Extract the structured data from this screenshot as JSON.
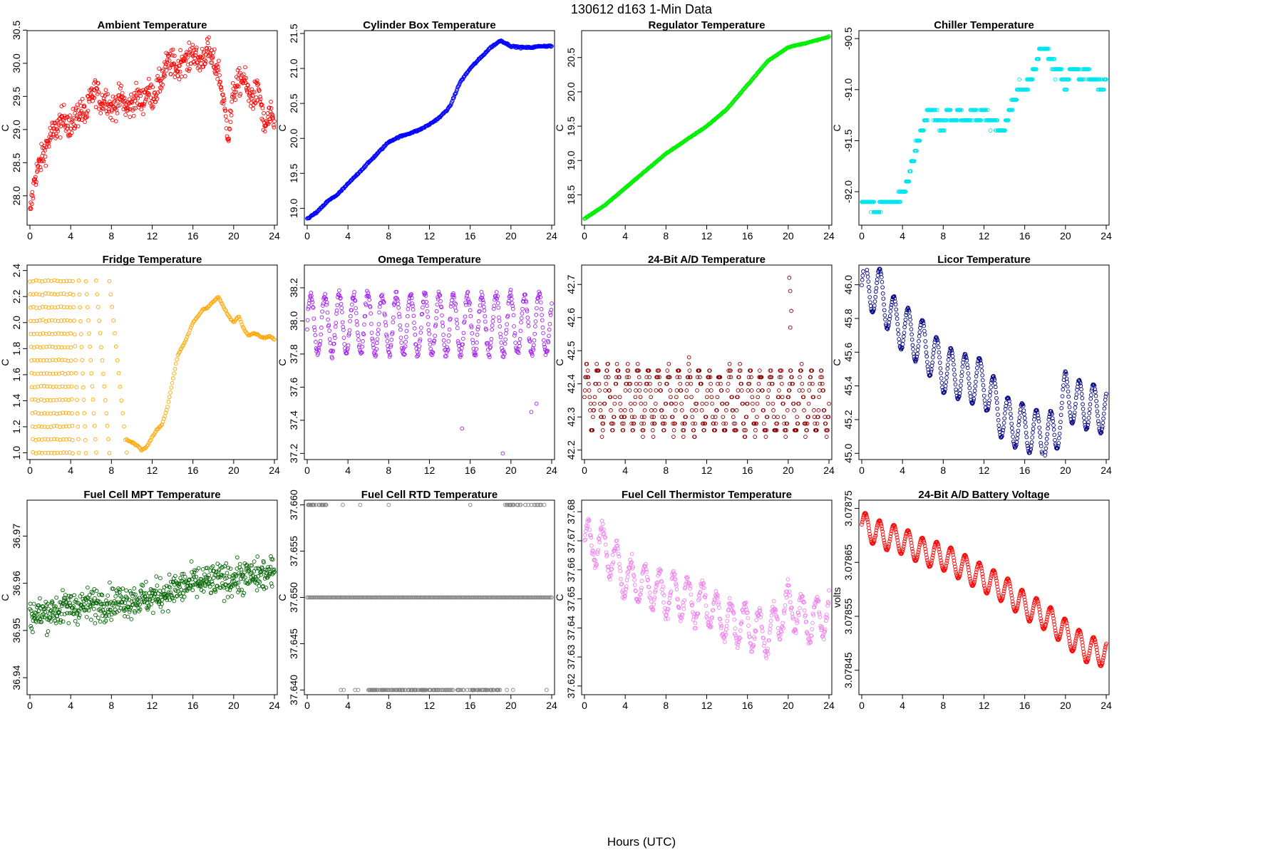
{
  "figure": {
    "title": "130612   d163   1-Min Data",
    "xlabel": "Hours (UTC)"
  },
  "chart_data": [
    {
      "title": "Ambient Temperature",
      "type": "scatter",
      "color": "#ff0000",
      "ylabel": "C",
      "xlim": [
        0,
        24
      ],
      "ylim": [
        27.6,
        30.45
      ],
      "yticks": [
        "28.0",
        "28.5",
        "29.0",
        "29.5",
        "30.0",
        "30.5"
      ],
      "xticks": [
        "0",
        "4",
        "8",
        "12",
        "16",
        "20",
        "24"
      ],
      "x": [
        0,
        0.5,
        1,
        1.5,
        2,
        2.5,
        3,
        3.5,
        4,
        4.5,
        5,
        5.5,
        6,
        6.5,
        7,
        7.5,
        8,
        8.5,
        9,
        9.5,
        10,
        10.5,
        11,
        11.5,
        12,
        12.5,
        13,
        13.5,
        14,
        14.5,
        15,
        15.5,
        16,
        16.5,
        17,
        17.5,
        18,
        18.5,
        19,
        19.5,
        20,
        20.5,
        21,
        21.5,
        22,
        22.5,
        23,
        23.5,
        24
      ],
      "y": [
        27.7,
        28.3,
        28.5,
        28.7,
        28.9,
        29.0,
        29.1,
        29.2,
        29.0,
        29.2,
        29.3,
        29.2,
        29.5,
        29.6,
        29.4,
        29.5,
        29.3,
        29.4,
        29.5,
        29.3,
        29.4,
        29.5,
        29.4,
        29.6,
        29.5,
        29.6,
        29.8,
        30.0,
        30.0,
        29.9,
        30.1,
        30.0,
        30.2,
        30.0,
        30.1,
        30.2,
        30.0,
        29.9,
        29.4,
        28.9,
        29.6,
        29.7,
        29.8,
        29.5,
        29.5,
        29.6,
        29.0,
        29.2,
        29.1
      ],
      "spread": 0.35,
      "density": 28
    },
    {
      "title": "Cylinder Box Temperature",
      "type": "line",
      "color": "#0000ff",
      "ylabel": "C",
      "xlim": [
        0,
        24
      ],
      "ylim": [
        18.8,
        21.5
      ],
      "yticks": [
        "19.0",
        "19.5",
        "20.0",
        "20.5",
        "21.0",
        "21.5"
      ],
      "xticks": [
        "0",
        "4",
        "8",
        "12",
        "16",
        "20",
        "24"
      ],
      "x": [
        0,
        1,
        2,
        3,
        4,
        5,
        6,
        7,
        8,
        9,
        10,
        11,
        12,
        13,
        14,
        15,
        16,
        17,
        18,
        19,
        20,
        21,
        22,
        23,
        24
      ],
      "y": [
        18.85,
        18.95,
        19.1,
        19.2,
        19.35,
        19.5,
        19.65,
        19.8,
        19.95,
        20.02,
        20.07,
        20.12,
        20.2,
        20.3,
        20.45,
        20.8,
        21.0,
        21.15,
        21.3,
        21.4,
        21.32,
        21.3,
        21.3,
        21.32,
        21.32
      ],
      "spread": 0.02,
      "density": 10
    },
    {
      "title": "Regulator Temperature",
      "type": "line",
      "color": "#00ee00",
      "ylabel": "C",
      "xlim": [
        0,
        24
      ],
      "ylim": [
        18.1,
        20.85
      ],
      "yticks": [
        "18.5",
        "19.0",
        "19.5",
        "20.0",
        "20.5"
      ],
      "xticks": [
        "0",
        "4",
        "8",
        "12",
        "16",
        "20",
        "24"
      ],
      "x": [
        0,
        2,
        4,
        6,
        8,
        10,
        12,
        14,
        16,
        18,
        20,
        22,
        24
      ],
      "y": [
        18.15,
        18.35,
        18.6,
        18.85,
        19.1,
        19.3,
        19.5,
        19.75,
        20.1,
        20.45,
        20.65,
        20.72,
        20.8
      ],
      "spread": 0.01,
      "density": 12
    },
    {
      "title": "Chiller Temperature",
      "type": "scatter",
      "color": "#00e5ee",
      "ylabel": "C",
      "xlim": [
        0,
        24
      ],
      "ylim": [
        -92.3,
        -90.45
      ],
      "yticks": [
        "-92.0",
        "-91.5",
        "-91.0",
        "-90.5"
      ],
      "xticks": [
        "0",
        "4",
        "8",
        "12",
        "16",
        "20",
        "24"
      ],
      "x": [
        0,
        0.5,
        1,
        1.5,
        2,
        2.5,
        3,
        3.5,
        4,
        4.5,
        5,
        5.5,
        6,
        6.5,
        7,
        7.5,
        8,
        8.5,
        9,
        9.5,
        10,
        10.5,
        11,
        11.5,
        12,
        12.5,
        13,
        13.5,
        14,
        14.5,
        15,
        15.5,
        16,
        16.5,
        17,
        17.5,
        18,
        18.5,
        19,
        19.5,
        20,
        20.5,
        21,
        21.5,
        22,
        22.5,
        23,
        23.5,
        24
      ],
      "y": [
        -92.1,
        -92.1,
        -92.1,
        -92.2,
        -92.1,
        -92.1,
        -92.1,
        -92.1,
        -92.0,
        -91.9,
        -91.7,
        -91.5,
        -91.4,
        -91.2,
        -91.2,
        -91.3,
        -91.4,
        -91.2,
        -91.3,
        -91.2,
        -91.3,
        -91.3,
        -91.2,
        -91.3,
        -91.2,
        -91.3,
        -91.3,
        -91.4,
        -91.4,
        -91.2,
        -91.1,
        -91.0,
        -91.0,
        -90.9,
        -90.8,
        -90.6,
        -90.6,
        -90.7,
        -90.8,
        -90.8,
        -91.0,
        -90.8,
        -90.8,
        -90.9,
        -90.8,
        -90.9,
        -90.9,
        -91.0,
        -90.9
      ],
      "spread": 0.08,
      "density": 22,
      "quant": 0.1
    },
    {
      "title": "Fridge Temperature",
      "type": "fridge",
      "color": "#ffa500",
      "ylabel": "C",
      "xlim": [
        0,
        24
      ],
      "ylim": [
        0.97,
        2.42
      ],
      "yticks": [
        "1.0",
        "1.2",
        "1.4",
        "1.6",
        "1.8",
        "2.0",
        "2.2",
        "2.4"
      ],
      "xticks": [
        "0",
        "4",
        "8",
        "12",
        "16",
        "20",
        "24"
      ],
      "cycles": [
        [
          0,
          0.3
        ],
        [
          0.3,
          0.6
        ],
        [
          0.6,
          0.9
        ],
        [
          0.9,
          1.2
        ],
        [
          1.2,
          1.5
        ],
        [
          1.5,
          1.8
        ],
        [
          1.8,
          2.1
        ],
        [
          2.1,
          2.4
        ],
        [
          2.4,
          2.7
        ],
        [
          2.7,
          3.0
        ],
        [
          3.0,
          3.3
        ],
        [
          3.3,
          3.6
        ],
        [
          3.6,
          3.9
        ],
        [
          3.9,
          4.2
        ],
        [
          4.2,
          4.8
        ],
        [
          4.8,
          5.5
        ],
        [
          5.5,
          6.5
        ],
        [
          6.5,
          7.8
        ],
        [
          7.8,
          9.5
        ]
      ],
      "x": [
        9.5,
        10,
        10.5,
        11,
        11.5,
        12,
        12.5,
        13,
        13.5,
        14,
        14.5,
        15,
        15.5,
        16,
        16.5,
        17,
        17.5,
        18,
        18.5,
        19,
        19.5,
        20,
        20.5,
        21,
        21.5,
        22,
        22.5,
        23,
        23.5,
        24
      ],
      "y": [
        1.1,
        1.08,
        1.06,
        1.02,
        1.05,
        1.12,
        1.18,
        1.22,
        1.35,
        1.55,
        1.75,
        1.82,
        1.9,
        2.0,
        2.05,
        2.1,
        2.12,
        2.16,
        2.2,
        2.12,
        2.05,
        2.0,
        2.05,
        1.95,
        1.9,
        1.92,
        1.9,
        1.88,
        1.9,
        1.87
      ],
      "spread": 0.01,
      "density": 14
    },
    {
      "title": "Omega Temperature",
      "type": "wave",
      "color": "#a020f0",
      "ylabel": "C",
      "xlim": [
        0,
        24
      ],
      "ylim": [
        37.18,
        38.32
      ],
      "yticks": [
        "37.2",
        "37.4",
        "37.6",
        "37.8",
        "38.0",
        "38.2"
      ],
      "xticks": [
        "0",
        "4",
        "8",
        "12",
        "16",
        "20",
        "24"
      ],
      "x": [
        0,
        24
      ],
      "y": [
        37.98,
        37.98
      ],
      "amp": 0.18,
      "period": 1.4,
      "spread": 0.05,
      "density": 80,
      "outliers": [
        [
          15.2,
          37.35
        ],
        [
          19.2,
          37.2
        ],
        [
          22.5,
          37.5
        ],
        [
          22,
          37.45
        ]
      ]
    },
    {
      "title": "24-Bit A/D Temperature",
      "type": "wave",
      "color": "#8b0000",
      "ylabel": "C",
      "xlim": [
        0,
        24
      ],
      "ylim": [
        42.18,
        42.75
      ],
      "yticks": [
        "42.2",
        "42.3",
        "42.4",
        "42.5",
        "42.6",
        "42.7"
      ],
      "xticks": [
        "0",
        "4",
        "8",
        "12",
        "16",
        "20",
        "24"
      ],
      "x": [
        0,
        24
      ],
      "y": [
        42.36,
        42.34
      ],
      "amp": 0.09,
      "period": 1.0,
      "spread": 0.04,
      "density": 80,
      "quant": 0.02,
      "outliers": [
        [
          20.1,
          42.72
        ],
        [
          20.2,
          42.68
        ],
        [
          20.3,
          42.62
        ],
        [
          20.2,
          42.57
        ]
      ]
    },
    {
      "title": "Licor Temperature",
      "type": "wave",
      "color": "#000080",
      "ylabel": "C",
      "xlim": [
        0,
        24
      ],
      "ylim": [
        44.98,
        46.1
      ],
      "yticks": [
        "45.0",
        "45.2",
        "45.4",
        "45.6",
        "45.8",
        "46.0"
      ],
      "xticks": [
        "0",
        "4",
        "8",
        "12",
        "16",
        "20",
        "24"
      ],
      "x": [
        0,
        2,
        3,
        4,
        6,
        8,
        10,
        12,
        14,
        16,
        18,
        19,
        20,
        21,
        24
      ],
      "y": [
        46.0,
        45.95,
        45.8,
        45.75,
        45.65,
        45.5,
        45.45,
        45.42,
        45.2,
        45.15,
        45.1,
        45.12,
        45.35,
        45.3,
        45.25
      ],
      "amp": 0.14,
      "period": 1.4,
      "spread": 0.01,
      "density": 90
    },
    {
      "title": "Fuel Cell MPT Temperature",
      "type": "scatter",
      "color": "#006400",
      "ylabel": "C",
      "xlim": [
        0,
        24
      ],
      "ylim": [
        36.937,
        36.977
      ],
      "yticks": [
        "36.94",
        "36.95",
        "36.96",
        "36.97"
      ],
      "xticks": [
        "0",
        "4",
        "8",
        "12",
        "16",
        "20",
        "24"
      ],
      "x": [
        0,
        4,
        8,
        12,
        16,
        20,
        24
      ],
      "y": [
        36.953,
        36.955,
        36.956,
        36.957,
        36.96,
        36.961,
        36.962
      ],
      "spread": 0.006,
      "density": 60
    },
    {
      "title": "Fuel Cell RTD Temperature",
      "type": "rtd",
      "color": "#808080",
      "ylabel": "C",
      "xlim": [
        0,
        24
      ],
      "ylim": [
        37.6398,
        37.6602
      ],
      "yticks": [
        "37.640",
        "37.645",
        "37.650",
        "37.655",
        "37.660"
      ],
      "xticks": [
        "0",
        "4",
        "8",
        "12",
        "16",
        "20",
        "24"
      ],
      "x": [
        0,
        24
      ],
      "y": [
        37.65,
        37.65
      ],
      "spread": 0,
      "density": 1
    },
    {
      "title": "Fuel Cell Thermistor Temperature",
      "type": "wave",
      "color": "#ee82ee",
      "ylabel": "C",
      "xlim": [
        0,
        24
      ],
      "ylim": [
        37.618,
        37.683
      ],
      "yticks": [
        "37.62",
        "37.63",
        "37.64",
        "37.65",
        "37.66",
        "37.67",
        "37.68"
      ],
      "xticks": [
        "0",
        "4",
        "8",
        "12",
        "16",
        "20",
        "24"
      ],
      "x": [
        0,
        2,
        4,
        8,
        12,
        14,
        16,
        18,
        20,
        22,
        24
      ],
      "y": [
        37.67,
        37.668,
        37.657,
        37.652,
        37.648,
        37.642,
        37.641,
        37.638,
        37.648,
        37.642,
        37.645
      ],
      "amp": 0.007,
      "period": 1.4,
      "spread": 0.004,
      "density": 80
    },
    {
      "title": "24-Bit A/D Battery Voltage",
      "type": "wave",
      "color": "#ff0000",
      "ylabel": "volts",
      "xlim": [
        0,
        24
      ],
      "ylim": [
        3.07841,
        3.07876
      ],
      "yticks": [
        "3.07845",
        "3.07855",
        "3.07865",
        "3.07875"
      ],
      "xticks": [
        "0",
        "4",
        "8",
        "12",
        "16",
        "20",
        "24"
      ],
      "x": [
        0,
        2,
        4,
        6,
        8,
        10,
        12,
        14,
        16,
        18,
        20,
        22,
        24
      ],
      "y": [
        3.07872,
        3.0787,
        3.07869,
        3.07867,
        3.07866,
        3.07864,
        3.07862,
        3.0786,
        3.07857,
        3.07855,
        3.07852,
        3.07849,
        3.07848
      ],
      "amp": 2.5e-05,
      "period": 1.4,
      "spread": 8e-07,
      "density": 90
    }
  ]
}
